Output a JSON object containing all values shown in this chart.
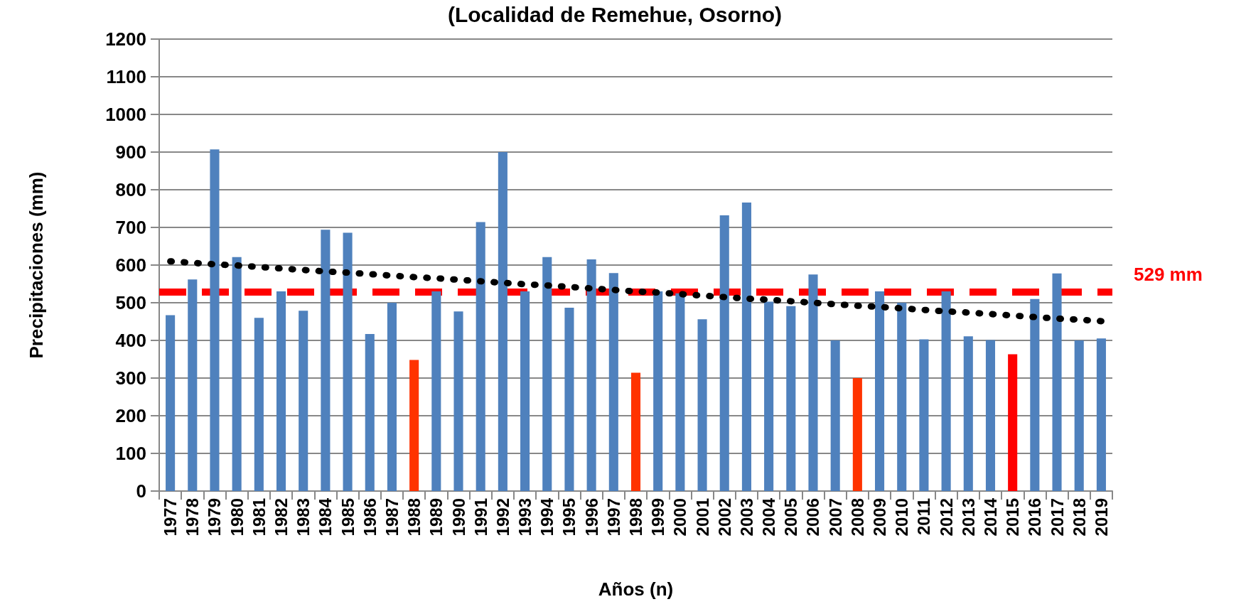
{
  "chart_data": {
    "type": "bar",
    "title": "(Localidad de Remehue, Osorno)",
    "xlabel": "Años (n)",
    "ylabel": "Precipitaciones (mm)",
    "categories": [
      "1977",
      "1978",
      "1979",
      "1980",
      "1981",
      "1982",
      "1983",
      "1984",
      "1985",
      "1986",
      "1987",
      "1988",
      "1989",
      "1990",
      "1991",
      "1992",
      "1993",
      "1994",
      "1995",
      "1996",
      "1997",
      "1998",
      "1999",
      "2000",
      "2001",
      "2002",
      "2003",
      "2004",
      "2005",
      "2006",
      "2007",
      "2008",
      "2009",
      "2010",
      "2011",
      "2012",
      "2013",
      "2014",
      "2015",
      "2016",
      "2017",
      "2018",
      "2019"
    ],
    "series": [
      {
        "type": "bar",
        "values": [
          467,
          562,
          907,
          621,
          460,
          530,
          479,
          694,
          686,
          417,
          500,
          348,
          530,
          477,
          714,
          900,
          530,
          621,
          487,
          615,
          579,
          314,
          530,
          525,
          456,
          732,
          766,
          503,
          491,
          575,
          400,
          300,
          530,
          500,
          403,
          530,
          411,
          401,
          363,
          510,
          578,
          400,
          405
        ],
        "colors": [
          "#4f81bd",
          "#4f81bd",
          "#4f81bd",
          "#4f81bd",
          "#4f81bd",
          "#4f81bd",
          "#4f81bd",
          "#4f81bd",
          "#4f81bd",
          "#4f81bd",
          "#4f81bd",
          "#ff3300",
          "#4f81bd",
          "#4f81bd",
          "#4f81bd",
          "#4f81bd",
          "#4f81bd",
          "#4f81bd",
          "#4f81bd",
          "#4f81bd",
          "#4f81bd",
          "#ff3300",
          "#4f81bd",
          "#4f81bd",
          "#4f81bd",
          "#4f81bd",
          "#4f81bd",
          "#4f81bd",
          "#4f81bd",
          "#4f81bd",
          "#4f81bd",
          "#ff3300",
          "#4f81bd",
          "#4f81bd",
          "#4f81bd",
          "#4f81bd",
          "#4f81bd",
          "#4f81bd",
          "#ff0000",
          "#4f81bd",
          "#4f81bd",
          "#4f81bd",
          "#4f81bd"
        ]
      },
      {
        "type": "line",
        "values": [
          610,
          606,
          602,
          599,
          595,
          591,
          587,
          583,
          580,
          576,
          572,
          568,
          565,
          561,
          557,
          553,
          549,
          546,
          542,
          538,
          534,
          530,
          527,
          523,
          519,
          515,
          511,
          508,
          504,
          500,
          496,
          492,
          489,
          485,
          481,
          477,
          474,
          470,
          466,
          462,
          458,
          455,
          451
        ],
        "color": "#000000",
        "line_style": "dotted"
      }
    ],
    "ylim": [
      0,
      1200
    ],
    "yticks": [
      0,
      100,
      200,
      300,
      400,
      500,
      600,
      700,
      800,
      900,
      1000,
      1100,
      1200
    ],
    "grid": "y",
    "ref_lines": [
      {
        "axis": "y",
        "value": 529,
        "label": "529 mm",
        "color": "#ff0000",
        "line_style": "dashed"
      }
    ]
  }
}
